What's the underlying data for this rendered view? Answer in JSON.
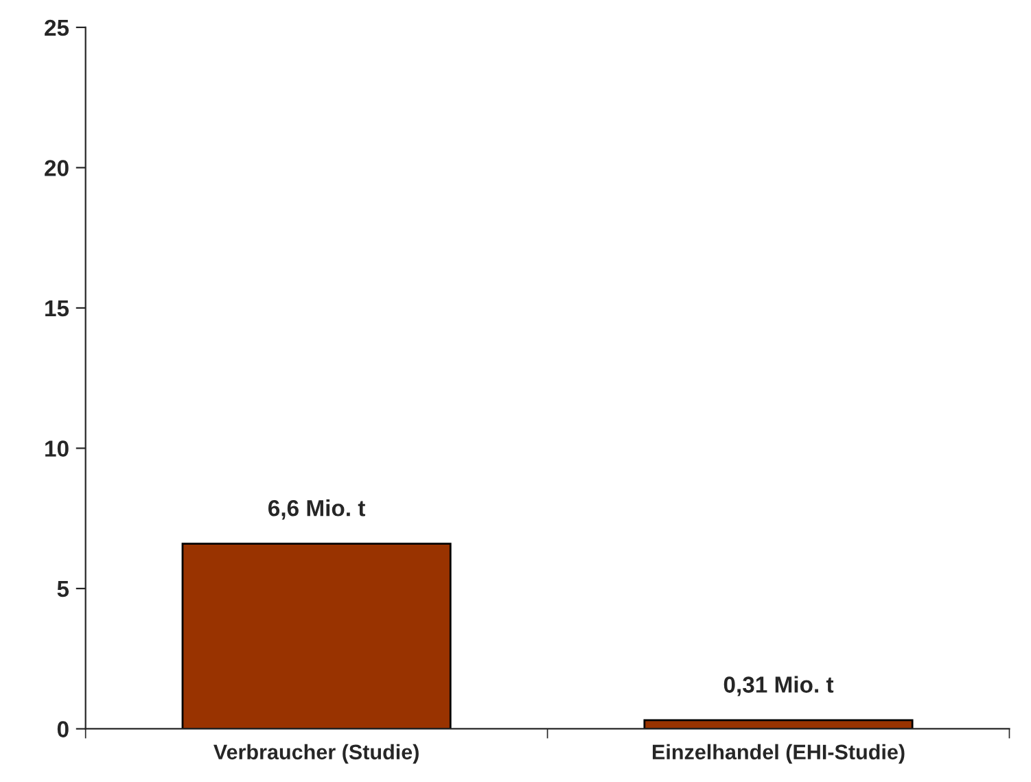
{
  "chart_data": {
    "type": "bar",
    "categories": [
      "Verbraucher (Studie)",
      "Einzelhandel (EHI-Studie)"
    ],
    "values": [
      6.6,
      0.31
    ],
    "color": "#993300",
    "value_labels": [
      "6,6 Mio. t",
      "0,31 Mio. t"
    ],
    "ylim": [
      0,
      25
    ],
    "yticks": [
      0,
      5,
      10,
      15,
      20,
      25
    ],
    "grid": false,
    "legend": false
  }
}
